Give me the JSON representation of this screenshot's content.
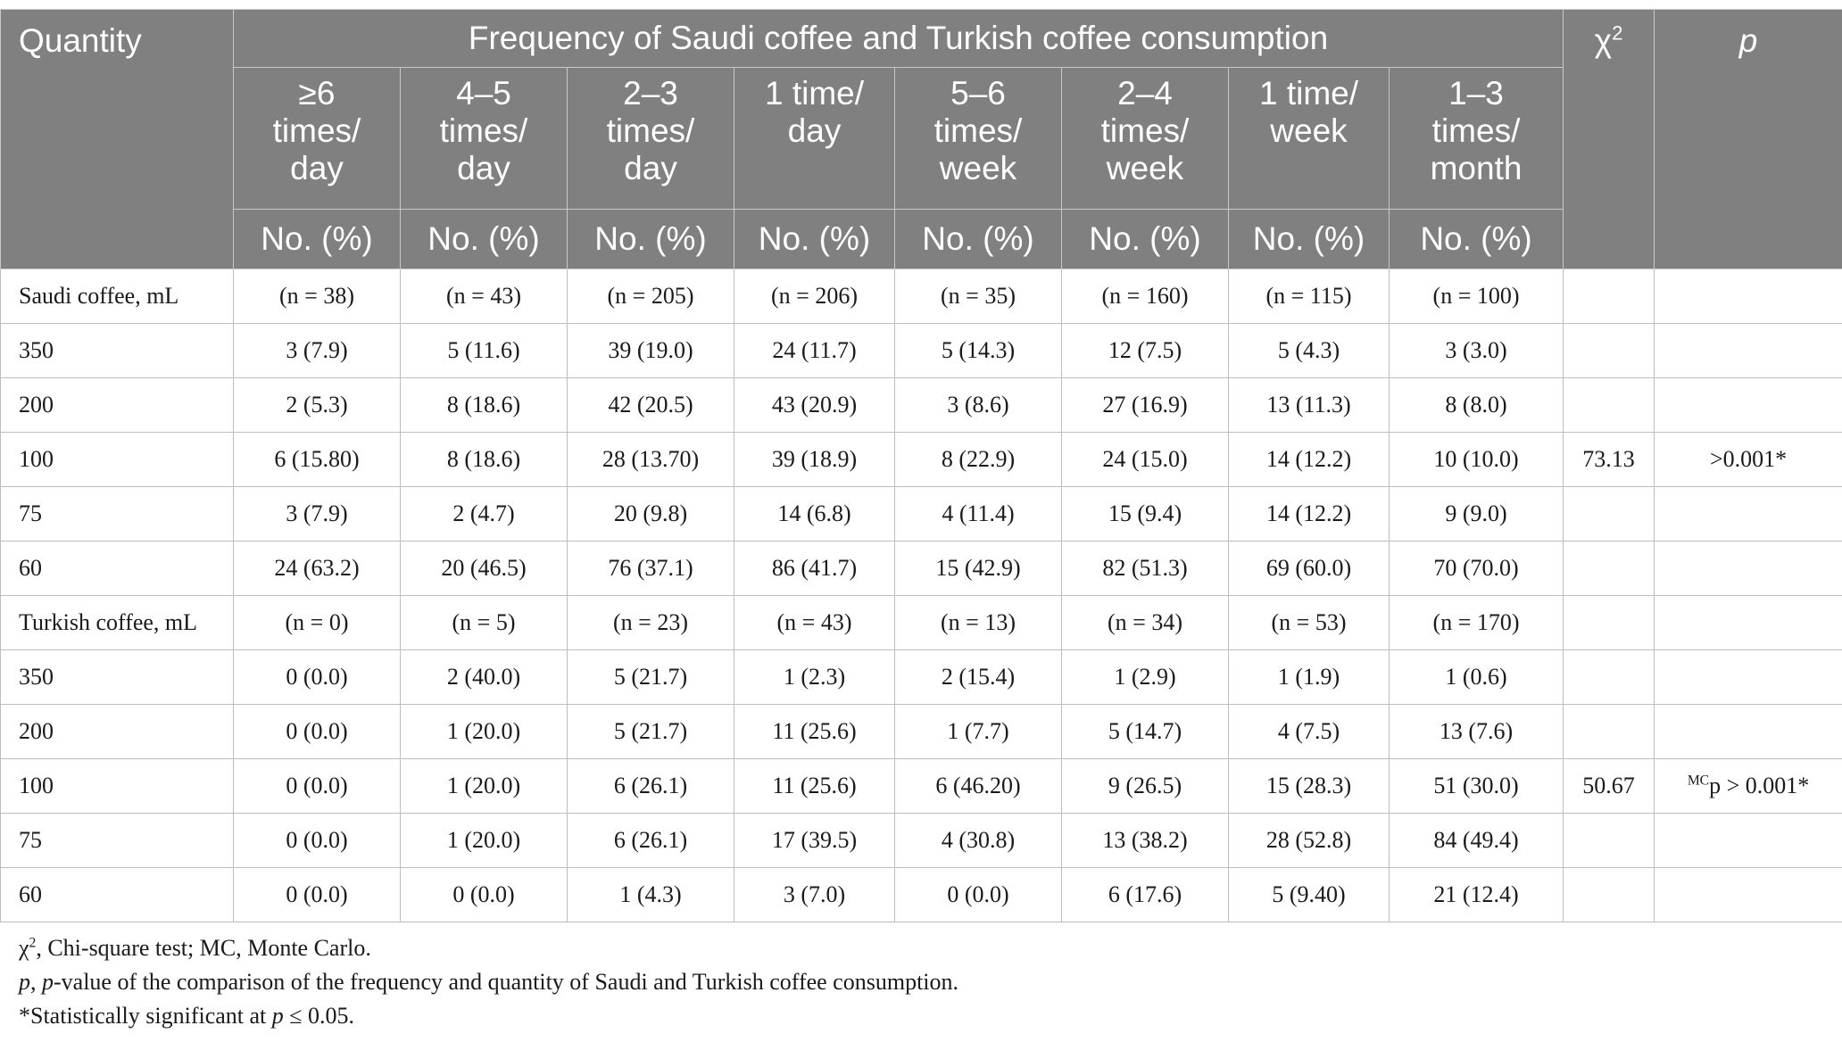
{
  "header": {
    "quantity": "Quantity",
    "group_title": "Frequency of Saudi coffee and Turkish coffee consumption",
    "chi_symbol": "χ",
    "chi_sup": "2",
    "p_label": "p",
    "unit": "No. (%)",
    "frequencies": [
      [
        "≥6",
        "times/",
        "day"
      ],
      [
        "4–5",
        "times/",
        "day"
      ],
      [
        "2–3",
        "times/",
        "day"
      ],
      [
        "1 time/",
        "day"
      ],
      [
        "5–6",
        "times/",
        "week"
      ],
      [
        "2–4",
        "times/",
        "week"
      ],
      [
        "1 time/",
        "week"
      ],
      [
        "1–3",
        "times/",
        "month"
      ]
    ]
  },
  "rows": [
    {
      "label": "Saudi coffee, mL",
      "values": [
        "(n = 38)",
        "(n = 43)",
        "(n = 205)",
        "(n = 206)",
        "(n = 35)",
        "(n = 160)",
        "(n = 115)",
        "(n = 100)"
      ],
      "chi": "",
      "p_sup": "",
      "p": ""
    },
    {
      "label": "350",
      "values": [
        "3 (7.9)",
        "5 (11.6)",
        "39 (19.0)",
        "24 (11.7)",
        "5 (14.3)",
        "12 (7.5)",
        "5 (4.3)",
        "3 (3.0)"
      ],
      "chi": "",
      "p_sup": "",
      "p": ""
    },
    {
      "label": "200",
      "values": [
        "2 (5.3)",
        "8 (18.6)",
        "42 (20.5)",
        "43 (20.9)",
        "3 (8.6)",
        "27 (16.9)",
        "13 (11.3)",
        "8 (8.0)"
      ],
      "chi": "",
      "p_sup": "",
      "p": ""
    },
    {
      "label": "100",
      "values": [
        "6 (15.80)",
        "8 (18.6)",
        "28 (13.70)",
        "39 (18.9)",
        "8 (22.9)",
        "24 (15.0)",
        "14 (12.2)",
        "10 (10.0)"
      ],
      "chi": "73.13",
      "p_sup": "",
      "p": ">0.001*"
    },
    {
      "label": "75",
      "values": [
        "3 (7.9)",
        "2 (4.7)",
        "20 (9.8)",
        "14 (6.8)",
        "4 (11.4)",
        "15 (9.4)",
        "14 (12.2)",
        "9 (9.0)"
      ],
      "chi": "",
      "p_sup": "",
      "p": ""
    },
    {
      "label": "60",
      "values": [
        "24 (63.2)",
        "20 (46.5)",
        "76 (37.1)",
        "86 (41.7)",
        "15 (42.9)",
        "82 (51.3)",
        "69 (60.0)",
        "70 (70.0)"
      ],
      "chi": "",
      "p_sup": "",
      "p": ""
    },
    {
      "label": "Turkish coffee, mL",
      "values": [
        "(n = 0)",
        "(n = 5)",
        "(n = 23)",
        "(n = 43)",
        "(n = 13)",
        "(n = 34)",
        "(n = 53)",
        "(n = 170)"
      ],
      "chi": "",
      "p_sup": "",
      "p": ""
    },
    {
      "label": "350",
      "values": [
        "0 (0.0)",
        "2 (40.0)",
        "5 (21.7)",
        "1 (2.3)",
        "2 (15.4)",
        "1 (2.9)",
        "1 (1.9)",
        "1 (0.6)"
      ],
      "chi": "",
      "p_sup": "",
      "p": ""
    },
    {
      "label": "200",
      "values": [
        "0 (0.0)",
        "1 (20.0)",
        "5 (21.7)",
        "11 (25.6)",
        "1 (7.7)",
        "5 (14.7)",
        "4 (7.5)",
        "13 (7.6)"
      ],
      "chi": "",
      "p_sup": "",
      "p": ""
    },
    {
      "label": "100",
      "values": [
        "0 (0.0)",
        "1 (20.0)",
        "6 (26.1)",
        "11 (25.6)",
        "6 (46.20)",
        "9 (26.5)",
        "15 (28.3)",
        "51 (30.0)"
      ],
      "chi": "50.67",
      "p_sup": "MC",
      "p": "p > 0.001*"
    },
    {
      "label": "75",
      "values": [
        "0 (0.0)",
        "1 (20.0)",
        "6 (26.1)",
        "17 (39.5)",
        "4 (30.8)",
        "13 (38.2)",
        "28 (52.8)",
        "84 (49.4)"
      ],
      "chi": "",
      "p_sup": "",
      "p": ""
    },
    {
      "label": "60",
      "values": [
        "0 (0.0)",
        "0 (0.0)",
        "1 (4.3)",
        "3 (7.0)",
        "0 (0.0)",
        "6 (17.6)",
        "5 (9.40)",
        "21 (12.4)"
      ],
      "chi": "",
      "p_sup": "",
      "p": ""
    }
  ],
  "footnotes": {
    "line1": {
      "sym": "χ",
      "sup": "2",
      "text": ", Chi-square test; MC, Monte Carlo."
    },
    "line2": {
      "p1": "p",
      "sep": ", ",
      "p2": "p",
      "text": "-value of the comparison of the frequency and quantity of Saudi and Turkish coffee consumption."
    },
    "line3": {
      "text": "*Statistically significant at ",
      "p": "p",
      "tail": " ≤ 0.05."
    }
  }
}
